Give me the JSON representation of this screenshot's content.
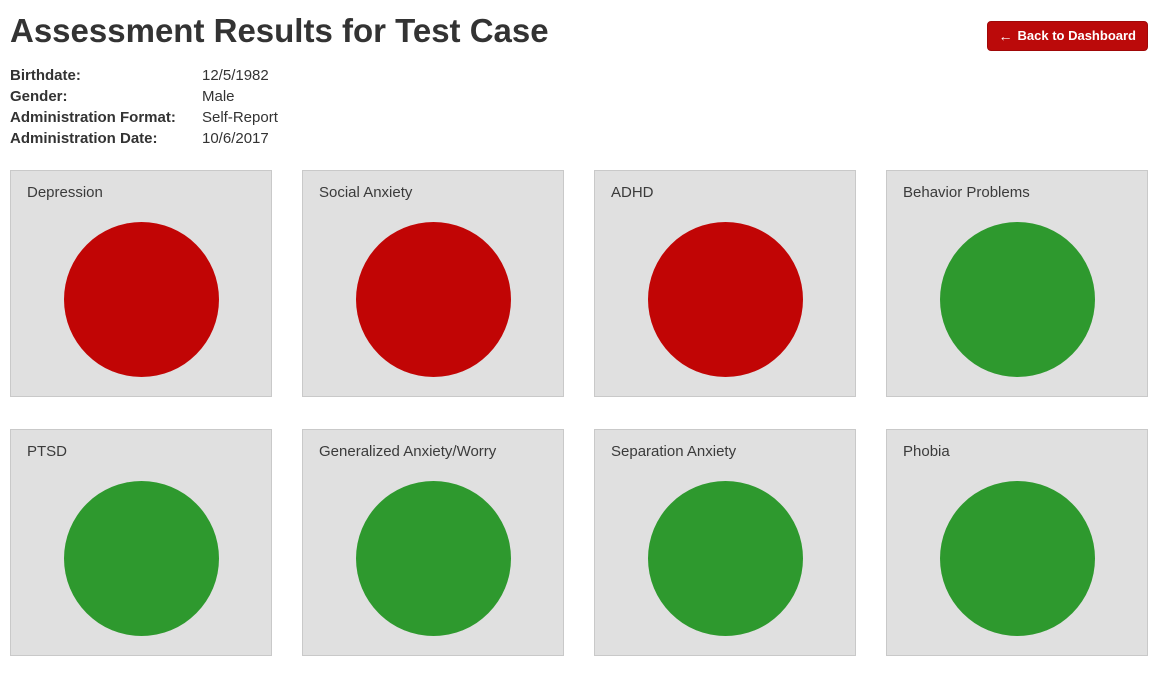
{
  "header": {
    "title": "Assessment Results for Test Case",
    "back_button_label": "Back to Dashboard",
    "back_icon": "←"
  },
  "patient_info": [
    {
      "label": "Birthdate:",
      "value": "12/5/1982"
    },
    {
      "label": "Gender:",
      "value": "Male"
    },
    {
      "label": "Administration Format:",
      "value": "Self-Report"
    },
    {
      "label": "Administration Date:",
      "value": "10/6/2017"
    }
  ],
  "cards": [
    {
      "label": "Depression",
      "status": "elevated"
    },
    {
      "label": "Social Anxiety",
      "status": "elevated"
    },
    {
      "label": "ADHD",
      "status": "elevated"
    },
    {
      "label": "Behavior Problems",
      "status": "normal"
    },
    {
      "label": "PTSD",
      "status": "normal"
    },
    {
      "label": "Generalized Anxiety/Worry",
      "status": "normal"
    },
    {
      "label": "Separation Anxiety",
      "status": "normal"
    },
    {
      "label": "Phobia",
      "status": "normal"
    }
  ],
  "colors": {
    "elevated_circle": "#c10505",
    "normal_circle": "#2e992e",
    "button_background": "#bb0a0a",
    "card_background": "#e0e0e0"
  }
}
